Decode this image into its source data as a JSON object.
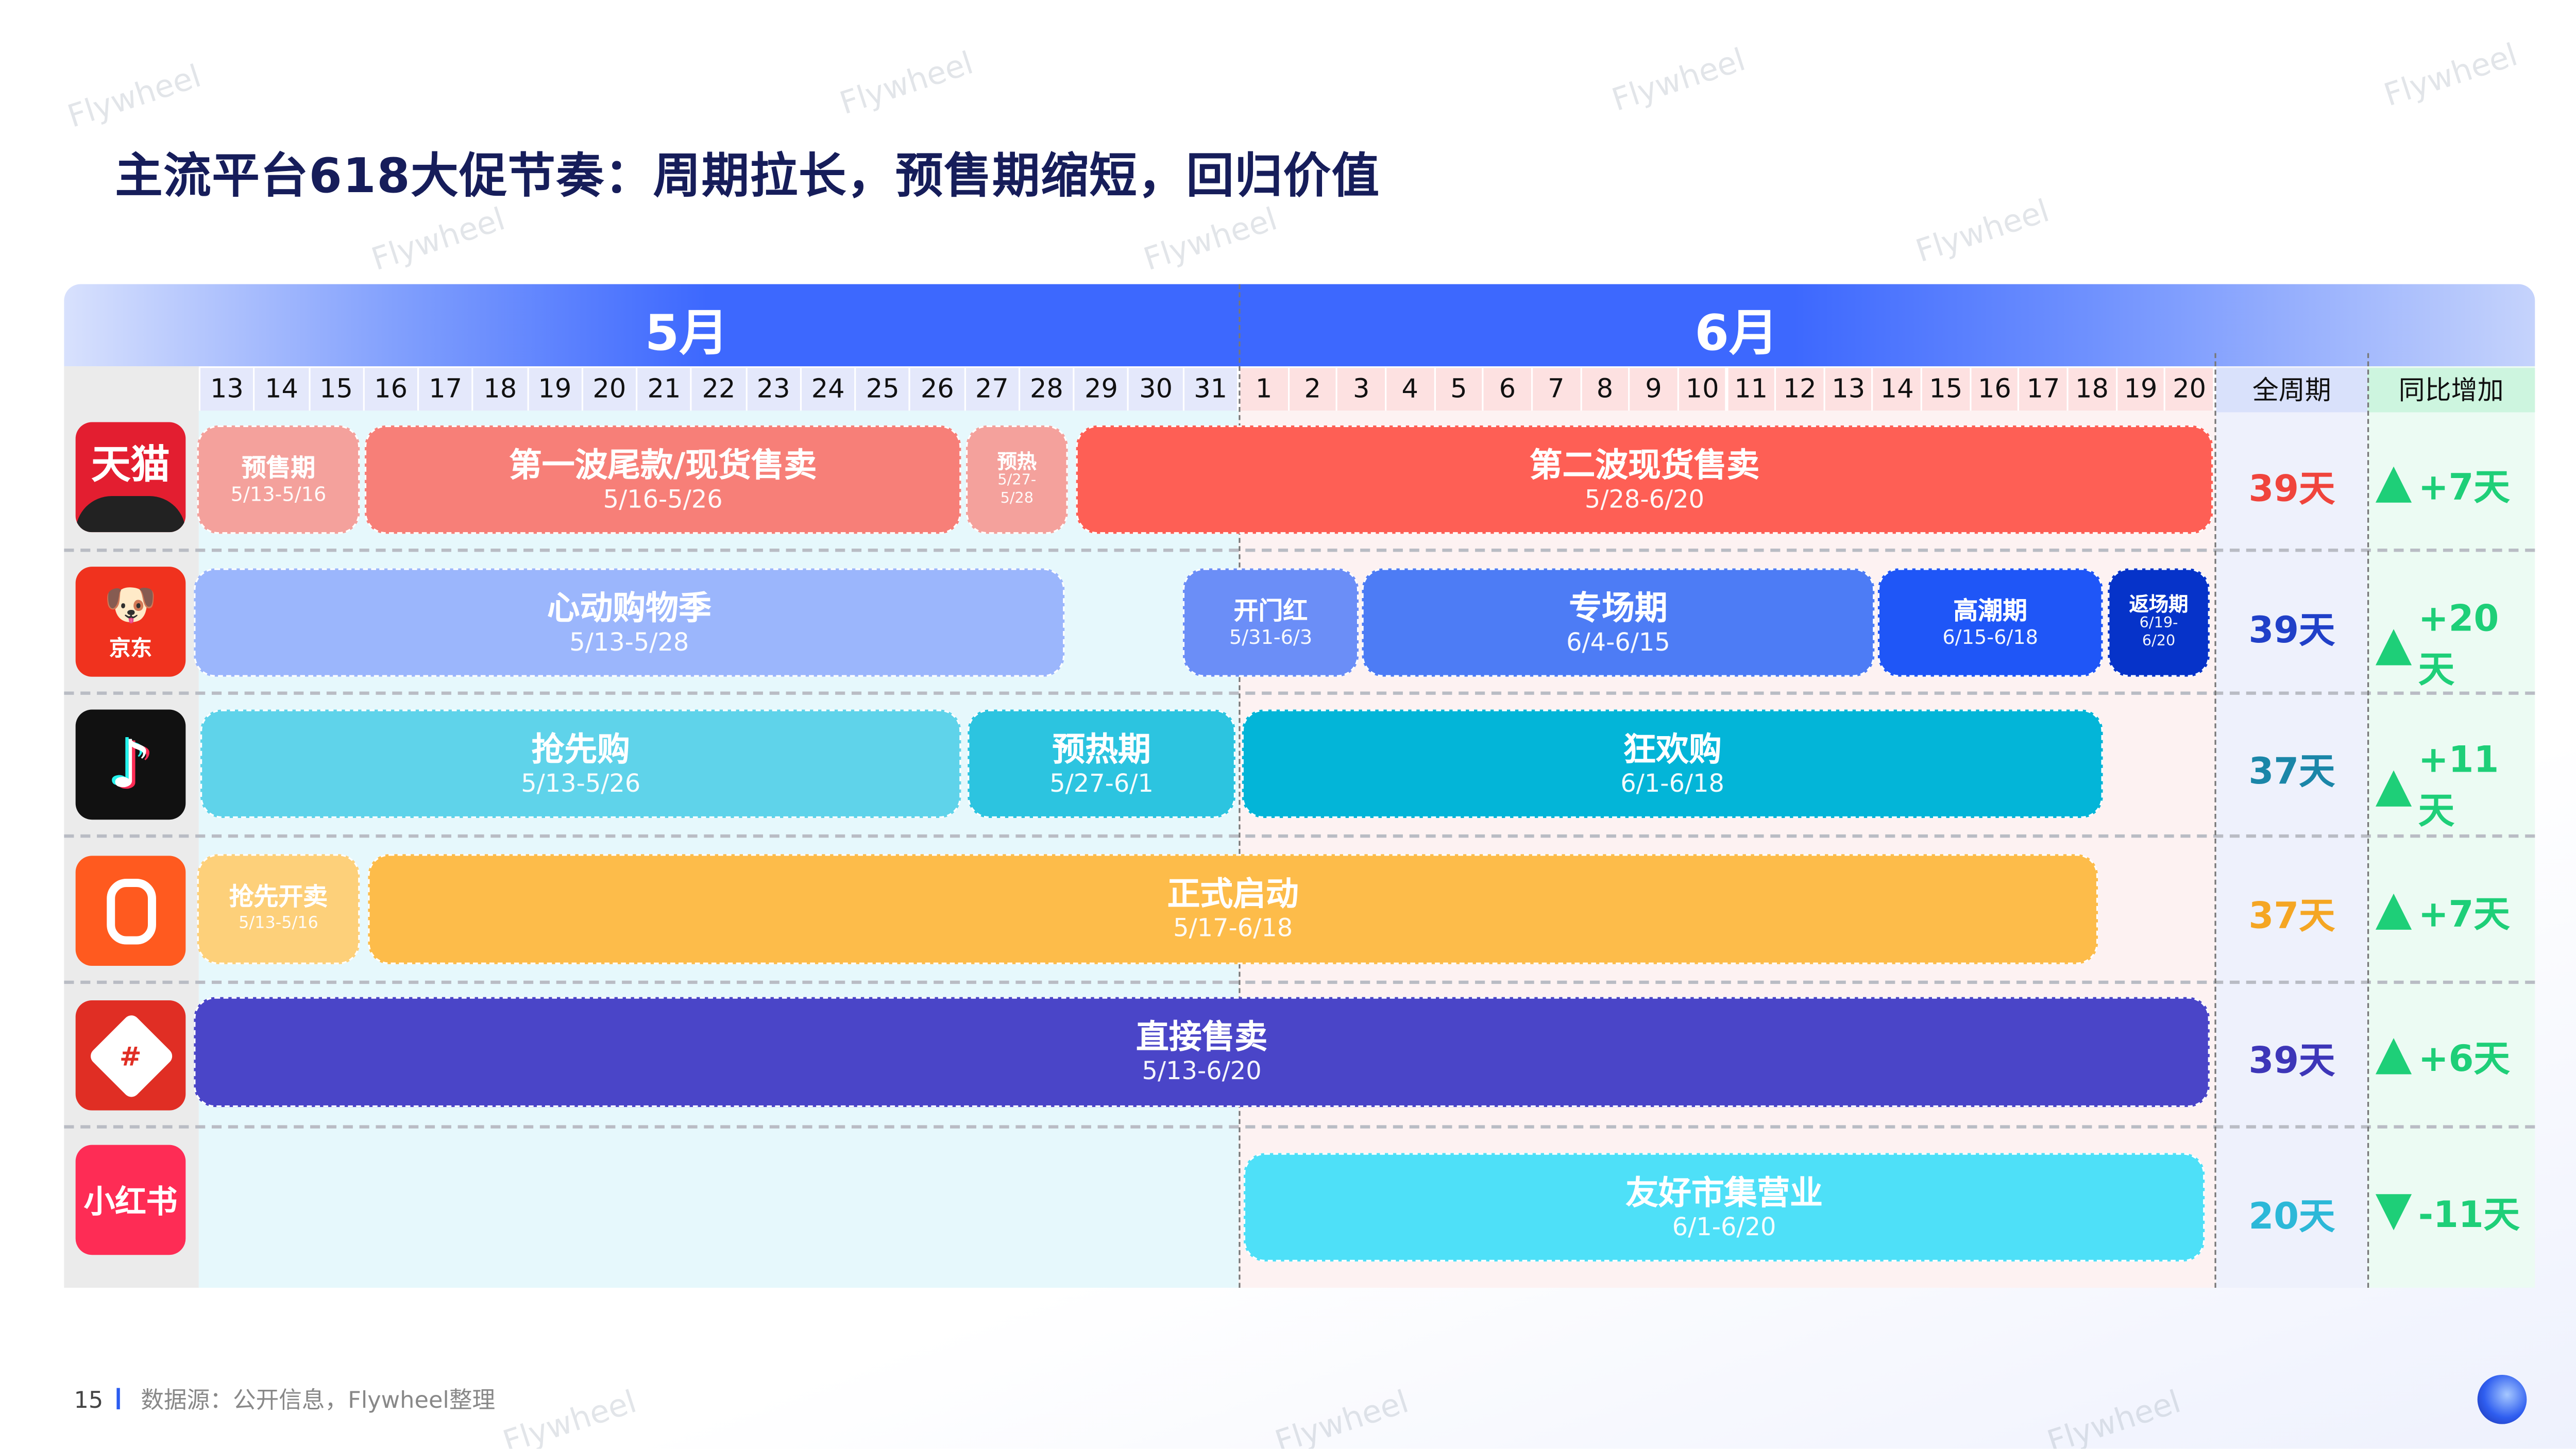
{
  "title": "主流平台618大促节奏：周期拉长，预售期缩短，回归价值",
  "timeline": {
    "months": [
      "5月",
      "6月"
    ],
    "may_days": [
      "13",
      "14",
      "15",
      "16",
      "17",
      "18",
      "19",
      "20",
      "21",
      "22",
      "23",
      "24",
      "25",
      "26",
      "27",
      "28",
      "29",
      "30",
      "31"
    ],
    "june_days": [
      "1",
      "2",
      "3",
      "4",
      "5",
      "6",
      "7",
      "8",
      "9",
      "10",
      "11",
      "12",
      "13",
      "14",
      "15",
      "16",
      "17",
      "18",
      "19",
      "20"
    ],
    "col_total": "全周期",
    "col_yoy": "同比增加"
  },
  "platforms": [
    {
      "logo_text": "天猫",
      "total": "39天",
      "total_color": "#f0443c",
      "yoy": "+7天",
      "yoy_dir": "up",
      "phases": [
        {
          "name": "预售期",
          "dates": "5/13-5/16",
          "color": "#f4a19c"
        },
        {
          "name": "第一波尾款/现货售卖",
          "dates": "5/16-5/26",
          "color": "#f77f78"
        },
        {
          "name": "预热",
          "dates": "5/27-5/28",
          "color": "#f4a19c"
        },
        {
          "name": "第二波现货售卖",
          "dates": "5/28-6/20",
          "color": "#fe5f55"
        }
      ]
    },
    {
      "logo_text": "京东",
      "total": "39天",
      "total_color": "#2040c8",
      "yoy": "+20天",
      "yoy_dir": "up",
      "phases": [
        {
          "name": "心动购物季",
          "dates": "5/13-5/28",
          "color": "#9bb6fc"
        },
        {
          "name": "开门红",
          "dates": "5/31-6/3",
          "color": "#6b8ef7"
        },
        {
          "name": "专场期",
          "dates": "6/4-6/15",
          "color": "#4d7cf5"
        },
        {
          "name": "高潮期",
          "dates": "6/15-6/18",
          "color": "#1f56f7"
        },
        {
          "name": "返场期",
          "dates": "6/19-6/20",
          "color": "#0633c9"
        }
      ]
    },
    {
      "logo_text": "抖音",
      "total": "37天",
      "total_color": "#1a86a8",
      "yoy": "+11天",
      "yoy_dir": "up",
      "phases": [
        {
          "name": "抢先购",
          "dates": "5/13-5/26",
          "color": "#5fd3ea"
        },
        {
          "name": "预热期",
          "dates": "5/27-6/1",
          "color": "#2cc4e0"
        },
        {
          "name": "狂欢购",
          "dates": "6/1-6/18",
          "color": "#03b5d8"
        }
      ]
    },
    {
      "logo_text": "快手",
      "total": "37天",
      "total_color": "#f5a623",
      "yoy": "+7天",
      "yoy_dir": "up",
      "phases": [
        {
          "name": "抢先开卖",
          "dates": "5/13-5/16",
          "color": "#fdd07a"
        },
        {
          "name": "正式启动",
          "dates": "5/17-6/18",
          "color": "#fdbc4a"
        }
      ]
    },
    {
      "logo_text": "拼多多",
      "total": "39天",
      "total_color": "#3d36b8",
      "yoy": "+6天",
      "yoy_dir": "up",
      "phases": [
        {
          "name": "直接售卖",
          "dates": "5/13-6/20",
          "color": "#4a45c8"
        }
      ]
    },
    {
      "logo_text": "小红书",
      "total": "20天",
      "total_color": "#2cb8d8",
      "yoy": "-11天",
      "yoy_dir": "down",
      "phases": [
        {
          "name": "友好市集营业",
          "dates": "6/1-6/20",
          "color": "#4ee0f8"
        }
      ]
    }
  ],
  "colors": {
    "yoy_green": "#1ecf78",
    "header_blue": "#3d68fe"
  },
  "footer": {
    "page": "15",
    "source": "数据源：公开信息，Flywheel整理"
  },
  "watermark": "Flywheel"
}
